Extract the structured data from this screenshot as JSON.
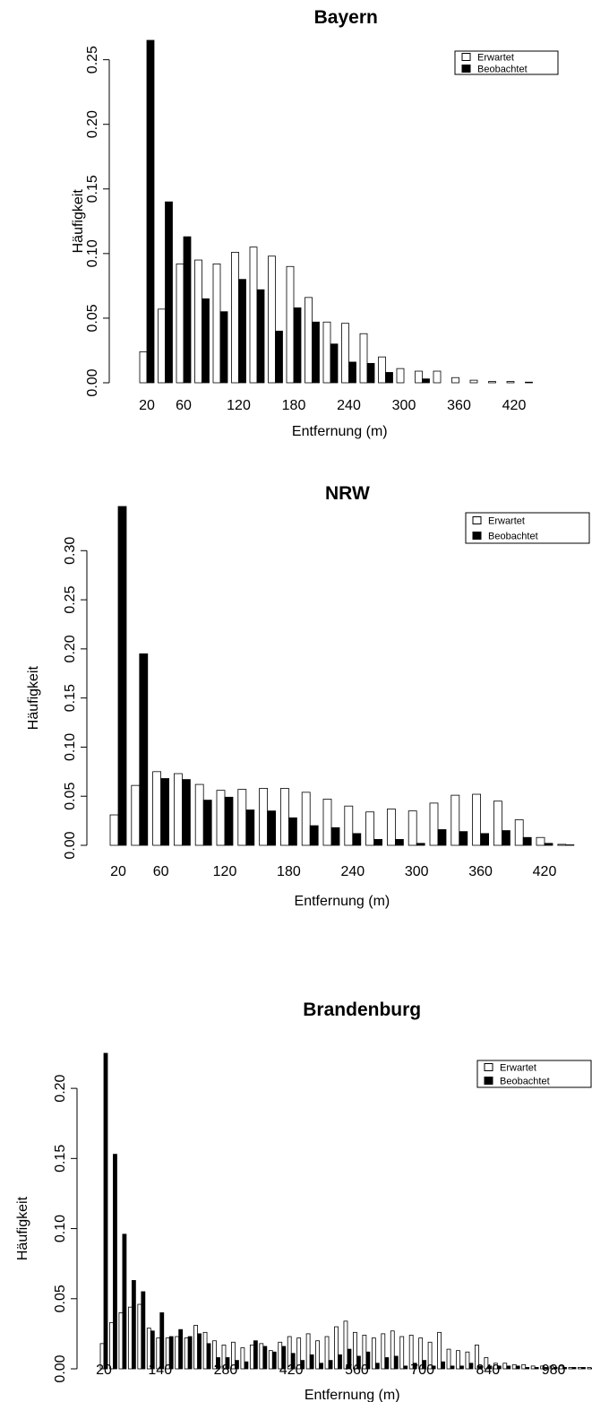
{
  "chart_data": [
    {
      "type": "bar",
      "title": "Bayern",
      "xlabel": "Entfernung (m)",
      "ylabel": "Häufigkeit",
      "x": [
        20,
        40,
        60,
        80,
        100,
        120,
        140,
        160,
        180,
        200,
        220,
        240,
        260,
        280,
        300,
        320,
        340,
        360,
        380,
        400,
        420,
        440
      ],
      "series": [
        {
          "name": "Erwartet",
          "color": "#ffffff",
          "values": [
            0.024,
            0.057,
            0.092,
            0.095,
            0.092,
            0.101,
            0.105,
            0.098,
            0.09,
            0.066,
            0.047,
            0.046,
            0.038,
            0.02,
            0.011,
            0.009,
            0.009,
            0.004,
            0.002,
            0.001,
            0.001,
            0.0005
          ]
        },
        {
          "name": "Beobachtet",
          "color": "#000000",
          "values": [
            0.265,
            0.14,
            0.113,
            0.065,
            0.055,
            0.08,
            0.072,
            0.04,
            0.058,
            0.047,
            0.03,
            0.016,
            0.015,
            0.008,
            0.0,
            0.003,
            0.0,
            0.0,
            0.0,
            0.0,
            0.0,
            0.0
          ]
        }
      ],
      "x_ticks": [
        "20",
        "60",
        "120",
        "180",
        "240",
        "300",
        "360",
        "420"
      ],
      "y_ticks": [
        "0.00",
        "0.05",
        "0.10",
        "0.15",
        "0.20",
        "0.25"
      ],
      "ylim": [
        0,
        0.265
      ],
      "legend": "top-right"
    },
    {
      "type": "bar",
      "title": "NRW",
      "xlabel": "Entfernung (m)",
      "ylabel": "Häufigkeit",
      "x": [
        20,
        40,
        60,
        80,
        100,
        120,
        140,
        160,
        180,
        200,
        220,
        240,
        260,
        280,
        300,
        320,
        340,
        360,
        380,
        400,
        420,
        440
      ],
      "series": [
        {
          "name": "Erwartet",
          "color": "#ffffff",
          "values": [
            0.031,
            0.061,
            0.075,
            0.073,
            0.062,
            0.056,
            0.057,
            0.058,
            0.058,
            0.054,
            0.047,
            0.04,
            0.034,
            0.037,
            0.035,
            0.043,
            0.051,
            0.052,
            0.045,
            0.026,
            0.008,
            0.001
          ]
        },
        {
          "name": "Beobachtet",
          "color": "#000000",
          "values": [
            0.345,
            0.195,
            0.068,
            0.067,
            0.046,
            0.049,
            0.036,
            0.035,
            0.028,
            0.02,
            0.018,
            0.012,
            0.006,
            0.006,
            0.002,
            0.016,
            0.014,
            0.012,
            0.015,
            0.008,
            0.002,
            0.0005
          ]
        }
      ],
      "x_ticks": [
        "20",
        "60",
        "120",
        "180",
        "240",
        "300",
        "360",
        "420"
      ],
      "y_ticks": [
        "0.00",
        "0.05",
        "0.10",
        "0.15",
        "0.20",
        "0.25",
        "0.30"
      ],
      "ylim": [
        0,
        0.345
      ],
      "legend": "top-right"
    },
    {
      "type": "bar",
      "title": "Brandenburg",
      "xlabel": "Entfernung (m)",
      "ylabel": "Häufigkeit",
      "x": [
        20,
        40,
        60,
        80,
        100,
        120,
        140,
        160,
        180,
        200,
        220,
        240,
        260,
        280,
        300,
        320,
        340,
        360,
        380,
        400,
        420,
        440,
        460,
        480,
        500,
        520,
        540,
        560,
        580,
        600,
        620,
        640,
        660,
        680,
        700,
        720,
        740,
        760,
        780,
        800,
        820,
        840,
        860,
        880,
        900,
        920,
        940,
        960,
        980,
        1000,
        1020,
        1040,
        1060,
        1080
      ],
      "series": [
        {
          "name": "Erwartet",
          "color": "#ffffff",
          "values": [
            0.018,
            0.033,
            0.04,
            0.044,
            0.046,
            0.029,
            0.022,
            0.022,
            0.023,
            0.022,
            0.031,
            0.026,
            0.02,
            0.017,
            0.019,
            0.015,
            0.017,
            0.018,
            0.013,
            0.019,
            0.023,
            0.022,
            0.025,
            0.02,
            0.023,
            0.03,
            0.034,
            0.026,
            0.024,
            0.022,
            0.025,
            0.027,
            0.023,
            0.024,
            0.022,
            0.019,
            0.026,
            0.014,
            0.013,
            0.012,
            0.017,
            0.008,
            0.004,
            0.004,
            0.003,
            0.003,
            0.002,
            0.002,
            0.002,
            0.002,
            0.001,
            0.001,
            0.001,
            0.001
          ]
        },
        {
          "name": "Beobachtet",
          "color": "#000000",
          "values": [
            0.225,
            0.153,
            0.096,
            0.063,
            0.055,
            0.027,
            0.04,
            0.023,
            0.028,
            0.023,
            0.025,
            0.018,
            0.008,
            0.008,
            0.006,
            0.005,
            0.02,
            0.016,
            0.012,
            0.016,
            0.011,
            0.006,
            0.01,
            0.004,
            0.006,
            0.01,
            0.014,
            0.009,
            0.012,
            0.004,
            0.008,
            0.009,
            0.002,
            0.004,
            0.006,
            0.002,
            0.005,
            0.002,
            0.002,
            0.004,
            0.002,
            0.002,
            0.002,
            0.002,
            0.002,
            0.001,
            0.001,
            0.001,
            0.001,
            0.001,
            0.001,
            0.001,
            0.0005,
            0.0005
          ]
        }
      ],
      "x_ticks": [
        "20",
        "140",
        "280",
        "420",
        "560",
        "700",
        "840",
        "980"
      ],
      "y_ticks": [
        "0.00",
        "0.05",
        "0.10",
        "0.15",
        "0.20"
      ],
      "ylim": [
        0,
        0.225
      ],
      "legend": "top-right"
    }
  ]
}
